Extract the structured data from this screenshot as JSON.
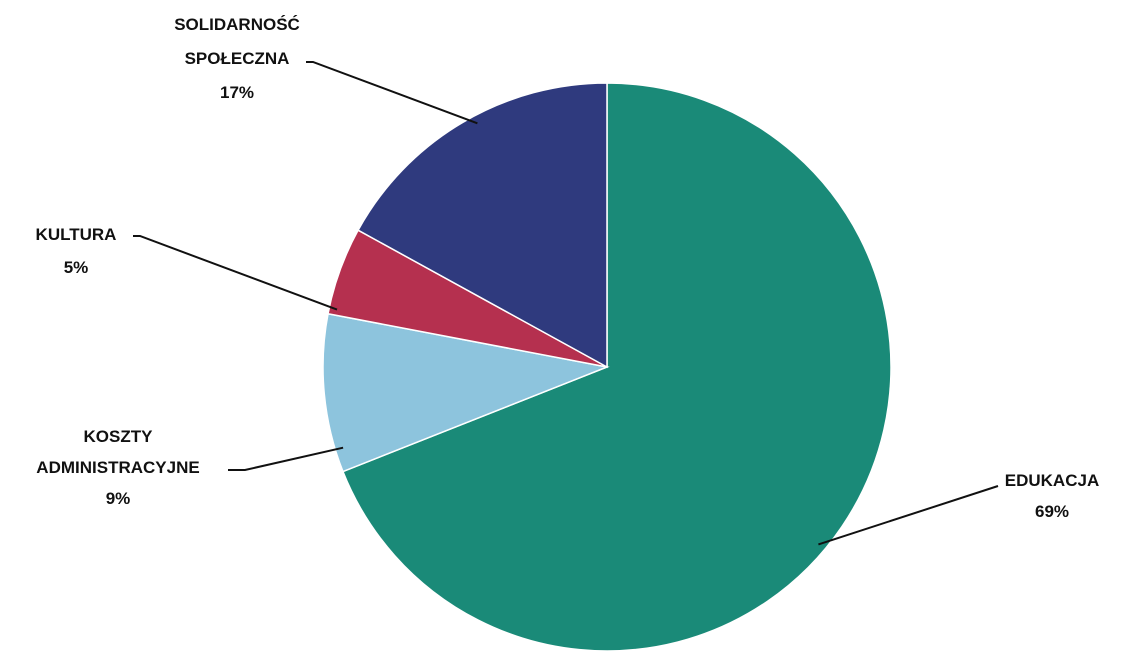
{
  "chart_data": {
    "type": "pie",
    "title": "",
    "start_angle_deg": 90,
    "direction": "clockwise",
    "slices": [
      {
        "name_lines": [
          "EDUKACJA"
        ],
        "value": 69,
        "value_label": "69%",
        "color": "#1a8a78"
      },
      {
        "name_lines": [
          "KOSZTY",
          "ADMINISTRACYJNE"
        ],
        "value": 9,
        "value_label": "9%",
        "color": "#8dc4dd"
      },
      {
        "name_lines": [
          "KULTURA"
        ],
        "value": 5,
        "value_label": "5%",
        "color": "#b5304f"
      },
      {
        "name_lines": [
          "SOLIDARNOŚĆ",
          "SPOŁECZNA"
        ],
        "value": 17,
        "value_label": "17%",
        "color": "#2f3a7e"
      }
    ]
  }
}
